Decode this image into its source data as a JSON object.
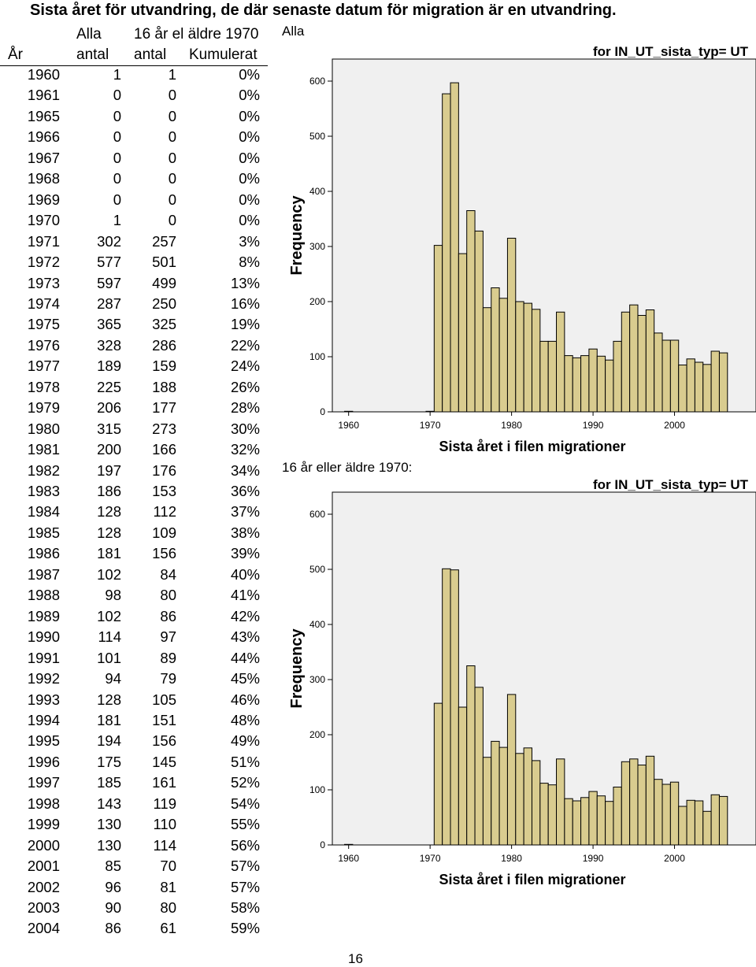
{
  "page": {
    "title": "Sista året för utvandring, de där senaste datum för migration är en utvandring.",
    "label_alla": "Alla",
    "label_16": "16 år eller äldre 1970:",
    "page_number": "16"
  },
  "table": {
    "header_top": [
      "Alla",
      "16 år el äldre 1970"
    ],
    "header_bottom": [
      "År",
      "antal",
      "antal",
      "Kumulerat"
    ],
    "rows": [
      [
        "1960",
        "1",
        "1",
        "0%"
      ],
      [
        "1961",
        "0",
        "0",
        "0%"
      ],
      [
        "1965",
        "0",
        "0",
        "0%"
      ],
      [
        "1966",
        "0",
        "0",
        "0%"
      ],
      [
        "1967",
        "0",
        "0",
        "0%"
      ],
      [
        "1968",
        "0",
        "0",
        "0%"
      ],
      [
        "1969",
        "0",
        "0",
        "0%"
      ],
      [
        "1970",
        "1",
        "0",
        "0%"
      ],
      [
        "1971",
        "302",
        "257",
        "3%"
      ],
      [
        "1972",
        "577",
        "501",
        "8%"
      ],
      [
        "1973",
        "597",
        "499",
        "13%"
      ],
      [
        "1974",
        "287",
        "250",
        "16%"
      ],
      [
        "1975",
        "365",
        "325",
        "19%"
      ],
      [
        "1976",
        "328",
        "286",
        "22%"
      ],
      [
        "1977",
        "189",
        "159",
        "24%"
      ],
      [
        "1978",
        "225",
        "188",
        "26%"
      ],
      [
        "1979",
        "206",
        "177",
        "28%"
      ],
      [
        "1980",
        "315",
        "273",
        "30%"
      ],
      [
        "1981",
        "200",
        "166",
        "32%"
      ],
      [
        "1982",
        "197",
        "176",
        "34%"
      ],
      [
        "1983",
        "186",
        "153",
        "36%"
      ],
      [
        "1984",
        "128",
        "112",
        "37%"
      ],
      [
        "1985",
        "128",
        "109",
        "38%"
      ],
      [
        "1986",
        "181",
        "156",
        "39%"
      ],
      [
        "1987",
        "102",
        "84",
        "40%"
      ],
      [
        "1988",
        "98",
        "80",
        "41%"
      ],
      [
        "1989",
        "102",
        "86",
        "42%"
      ],
      [
        "1990",
        "114",
        "97",
        "43%"
      ],
      [
        "1991",
        "101",
        "89",
        "44%"
      ],
      [
        "1992",
        "94",
        "79",
        "45%"
      ],
      [
        "1993",
        "128",
        "105",
        "46%"
      ],
      [
        "1994",
        "181",
        "151",
        "48%"
      ],
      [
        "1995",
        "194",
        "156",
        "49%"
      ],
      [
        "1996",
        "175",
        "145",
        "51%"
      ],
      [
        "1997",
        "185",
        "161",
        "52%"
      ],
      [
        "1998",
        "143",
        "119",
        "54%"
      ],
      [
        "1999",
        "130",
        "110",
        "55%"
      ],
      [
        "2000",
        "130",
        "114",
        "56%"
      ],
      [
        "2001",
        "85",
        "70",
        "57%"
      ],
      [
        "2002",
        "96",
        "81",
        "57%"
      ],
      [
        "2003",
        "90",
        "80",
        "58%"
      ],
      [
        "2004",
        "86",
        "61",
        "59%"
      ]
    ]
  },
  "chart_data": [
    {
      "type": "bar",
      "title": "for IN_UT_sista_typ= UT",
      "xlabel": "Sista året i filen migrationer",
      "ylabel": "Frequency",
      "x_ticks": [
        "1960",
        "1970",
        "1980",
        "1990",
        "2000"
      ],
      "y_ticks": [
        "0",
        "100",
        "200",
        "300",
        "400",
        "500",
        "600"
      ],
      "xlim": [
        1958,
        2010
      ],
      "ylim": [
        0,
        640
      ],
      "years": [
        1960,
        1970,
        1971,
        1972,
        1973,
        1974,
        1975,
        1976,
        1977,
        1978,
        1979,
        1980,
        1981,
        1982,
        1983,
        1984,
        1985,
        1986,
        1987,
        1988,
        1989,
        1990,
        1991,
        1992,
        1993,
        1994,
        1995,
        1996,
        1997,
        1998,
        1999,
        2000,
        2001,
        2002,
        2003,
        2004,
        2005,
        2006
      ],
      "values": [
        1,
        1,
        302,
        577,
        597,
        287,
        365,
        328,
        189,
        225,
        206,
        315,
        200,
        197,
        186,
        128,
        128,
        181,
        102,
        98,
        102,
        114,
        101,
        94,
        128,
        181,
        194,
        175,
        185,
        143,
        130,
        130,
        85,
        96,
        90,
        86,
        110,
        107
      ],
      "colors": {
        "bar": "#d9cc8f",
        "plot_bg": "#f0f0f0",
        "edge": "#000000"
      }
    },
    {
      "type": "bar",
      "title": "for IN_UT_sista_typ= UT",
      "xlabel": "Sista året i filen migrationer",
      "ylabel": "Frequency",
      "x_ticks": [
        "1960",
        "1970",
        "1980",
        "1990",
        "2000"
      ],
      "y_ticks": [
        "0",
        "100",
        "200",
        "300",
        "400",
        "500",
        "600"
      ],
      "xlim": [
        1958,
        2010
      ],
      "ylim": [
        0,
        640
      ],
      "years": [
        1960,
        1971,
        1972,
        1973,
        1974,
        1975,
        1976,
        1977,
        1978,
        1979,
        1980,
        1981,
        1982,
        1983,
        1984,
        1985,
        1986,
        1987,
        1988,
        1989,
        1990,
        1991,
        1992,
        1993,
        1994,
        1995,
        1996,
        1997,
        1998,
        1999,
        2000,
        2001,
        2002,
        2003,
        2004,
        2005,
        2006
      ],
      "values": [
        1,
        257,
        501,
        499,
        250,
        325,
        286,
        159,
        188,
        177,
        273,
        166,
        176,
        153,
        112,
        109,
        156,
        84,
        80,
        86,
        97,
        89,
        79,
        105,
        151,
        156,
        145,
        161,
        119,
        110,
        114,
        70,
        81,
        80,
        61,
        91,
        88
      ],
      "colors": {
        "bar": "#d9cc8f",
        "plot_bg": "#f0f0f0",
        "edge": "#000000"
      }
    }
  ]
}
